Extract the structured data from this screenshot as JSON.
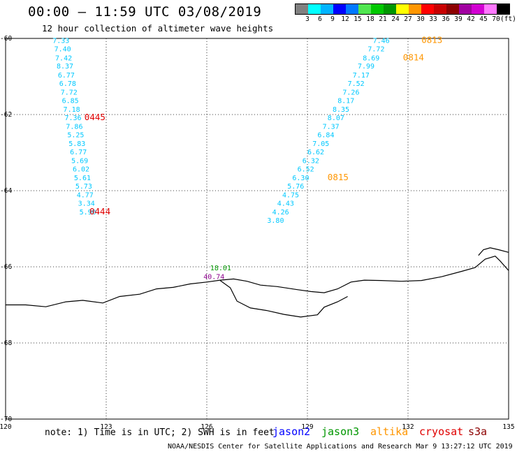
{
  "title": "00:00 – 11:59 UTC 03/08/2019",
  "subtitle": "12 hour collection of altimeter wave heights",
  "scale": {
    "colors": [
      "#808080",
      "#00ffff",
      "#00b4ff",
      "#0000ff",
      "#0078ff",
      "#50e650",
      "#00c800",
      "#009600",
      "#ffff00",
      "#ff9600",
      "#ff0000",
      "#c80000",
      "#8c0000",
      "#a000a0",
      "#d200d2",
      "#ff78ff",
      "#000000"
    ],
    "labels": [
      "3",
      "6",
      "9",
      "12",
      "15",
      "18",
      "21",
      "24",
      "27",
      "30",
      "33",
      "36",
      "39",
      "42",
      "45",
      "70"
    ],
    "unit": "(ft)"
  },
  "map": {
    "lon_range": [
      120,
      135
    ],
    "lat_range": [
      -70,
      -60
    ],
    "y_ticks": [
      "-60",
      "-62",
      "-64",
      "-66",
      "-68",
      "-70"
    ],
    "x_ticks": [
      "120",
      "123",
      "126",
      "129",
      "132",
      "135"
    ],
    "coastline": [
      [
        120.0,
        -67.0
      ],
      [
        120.6,
        -67.0
      ],
      [
        121.2,
        -67.05
      ],
      [
        121.8,
        -66.92
      ],
      [
        122.3,
        -66.88
      ],
      [
        122.9,
        -66.95
      ],
      [
        123.4,
        -66.78
      ],
      [
        124.0,
        -66.72
      ],
      [
        124.5,
        -66.58
      ],
      [
        125.0,
        -66.54
      ],
      [
        125.5,
        -66.45
      ],
      [
        126.0,
        -66.4
      ],
      [
        126.4,
        -66.35
      ],
      [
        126.8,
        -66.32
      ],
      [
        127.2,
        -66.38
      ],
      [
        127.6,
        -66.48
      ],
      [
        128.1,
        -66.52
      ],
      [
        128.7,
        -66.6
      ],
      [
        129.1,
        -66.65
      ],
      [
        129.5,
        -66.68
      ],
      [
        129.9,
        -66.58
      ],
      [
        130.3,
        -66.4
      ],
      [
        130.7,
        -66.35
      ],
      [
        131.2,
        -66.36
      ],
      [
        131.8,
        -66.38
      ],
      [
        132.4,
        -66.36
      ],
      [
        133.0,
        -66.26
      ],
      [
        133.6,
        -66.12
      ],
      [
        134.0,
        -66.02
      ],
      [
        134.3,
        -65.8
      ],
      [
        134.6,
        -65.72
      ],
      [
        134.75,
        -65.85
      ],
      [
        135.0,
        -66.1
      ]
    ],
    "islands": [
      [
        [
          126.4,
          -66.36
        ],
        [
          126.7,
          -66.55
        ],
        [
          126.9,
          -66.9
        ],
        [
          127.3,
          -67.08
        ],
        [
          127.8,
          -67.15
        ],
        [
          128.3,
          -67.25
        ],
        [
          128.8,
          -67.32
        ],
        [
          129.3,
          -67.26
        ],
        [
          129.5,
          -67.06
        ],
        [
          129.9,
          -66.92
        ],
        [
          130.2,
          -66.78
        ]
      ],
      [
        [
          134.1,
          -65.7
        ],
        [
          134.25,
          -65.55
        ],
        [
          134.45,
          -65.5
        ],
        [
          134.7,
          -65.55
        ],
        [
          135.0,
          -65.62
        ]
      ]
    ]
  },
  "tracks": [
    {
      "mission": "cryosat",
      "color": "#00c8ff",
      "values": [
        {
          "v": "7.33",
          "lon": 121.4,
          "lat": -60.05
        },
        {
          "v": "7.40",
          "lon": 121.45,
          "lat": -60.27
        },
        {
          "v": "7.42",
          "lon": 121.48,
          "lat": -60.5
        },
        {
          "v": "8.37",
          "lon": 121.52,
          "lat": -60.72
        },
        {
          "v": "6.77",
          "lon": 121.56,
          "lat": -60.95
        },
        {
          "v": "6.78",
          "lon": 121.6,
          "lat": -61.17
        },
        {
          "v": "7.72",
          "lon": 121.64,
          "lat": -61.4
        },
        {
          "v": "6.85",
          "lon": 121.68,
          "lat": -61.62
        },
        {
          "v": "7.18",
          "lon": 121.72,
          "lat": -61.85
        },
        {
          "v": "7.36",
          "lon": 121.76,
          "lat": -62.07
        },
        {
          "v": "7.86",
          "lon": 121.8,
          "lat": -62.3
        },
        {
          "v": "5.25",
          "lon": 121.84,
          "lat": -62.52
        },
        {
          "v": "5.83",
          "lon": 121.88,
          "lat": -62.75
        },
        {
          "v": "6.77",
          "lon": 121.92,
          "lat": -62.97
        },
        {
          "v": "5.69",
          "lon": 121.96,
          "lat": -63.2
        },
        {
          "v": "6.02",
          "lon": 122.0,
          "lat": -63.42
        },
        {
          "v": "5.61",
          "lon": 122.04,
          "lat": -63.65
        },
        {
          "v": "5.73",
          "lon": 122.08,
          "lat": -63.87
        },
        {
          "v": "4.77",
          "lon": 122.12,
          "lat": -64.1
        },
        {
          "v": "3.34",
          "lon": 122.16,
          "lat": -64.32
        },
        {
          "v": "5.90",
          "lon": 122.2,
          "lat": -64.55
        }
      ],
      "passes": [
        {
          "label": "0445",
          "lon": 122.35,
          "lat": -62.07,
          "color": "#e00000"
        },
        {
          "label": "0444",
          "lon": 122.5,
          "lat": -64.55,
          "color": "#e00000"
        }
      ]
    },
    {
      "mission": "altika",
      "color": "#00c8ff",
      "values": [
        {
          "v": "7.46",
          "lon": 130.95,
          "lat": -60.05
        },
        {
          "v": "7.72",
          "lon": 130.8,
          "lat": -60.27
        },
        {
          "v": "8.69",
          "lon": 130.65,
          "lat": -60.5
        },
        {
          "v": "7.99",
          "lon": 130.5,
          "lat": -60.72
        },
        {
          "v": "7.17",
          "lon": 130.35,
          "lat": -60.95
        },
        {
          "v": "7.52",
          "lon": 130.2,
          "lat": -61.17
        },
        {
          "v": "7.26",
          "lon": 130.05,
          "lat": -61.4
        },
        {
          "v": "8.17",
          "lon": 129.9,
          "lat": -61.62
        },
        {
          "v": "8.35",
          "lon": 129.75,
          "lat": -61.85
        },
        {
          "v": "8.07",
          "lon": 129.6,
          "lat": -62.07
        },
        {
          "v": "7.37",
          "lon": 129.45,
          "lat": -62.3
        },
        {
          "v": "6.84",
          "lon": 129.3,
          "lat": -62.52
        },
        {
          "v": "7.05",
          "lon": 129.15,
          "lat": -62.75
        },
        {
          "v": "6.62",
          "lon": 129.0,
          "lat": -62.97
        },
        {
          "v": "6.32",
          "lon": 128.85,
          "lat": -63.2
        },
        {
          "v": "6.52",
          "lon": 128.7,
          "lat": -63.42
        },
        {
          "v": "6.30",
          "lon": 128.55,
          "lat": -63.65
        },
        {
          "v": "5.76",
          "lon": 128.4,
          "lat": -63.87
        },
        {
          "v": "4.75",
          "lon": 128.25,
          "lat": -64.1
        },
        {
          "v": "4.43",
          "lon": 128.1,
          "lat": -64.32
        },
        {
          "v": "4.26",
          "lon": 127.95,
          "lat": -64.55
        },
        {
          "v": "3.80",
          "lon": 127.8,
          "lat": -64.77
        }
      ],
      "passes": [
        {
          "label": "0813",
          "lon": 132.4,
          "lat": -60.05,
          "color": "#ff9600"
        },
        {
          "label": "0814",
          "lon": 131.85,
          "lat": -60.5,
          "color": "#ff9600"
        },
        {
          "label": "0815",
          "lon": 129.6,
          "lat": -63.65,
          "color": "#ff9600"
        }
      ]
    },
    {
      "mission": "jason3",
      "color": "#009600",
      "values": [
        {
          "v": "18.01",
          "lon": 126.1,
          "lat": -66.02
        }
      ],
      "passes": []
    },
    {
      "mission": "s3a",
      "color": "#8c008c",
      "values": [
        {
          "v": "40.74",
          "lon": 125.9,
          "lat": -66.25
        }
      ],
      "passes": []
    }
  ],
  "note": "note: 1) Time is in UTC; 2) SWH is in feet",
  "legend": [
    {
      "label": "jason2",
      "color": "#0000ff"
    },
    {
      "label": "jason3",
      "color": "#009600"
    },
    {
      "label": "altika",
      "color": "#ff9600"
    },
    {
      "label": "cryosat",
      "color": "#e00000"
    },
    {
      "label": "s3a",
      "color": "#8c0000"
    }
  ],
  "credit": "NOAA/NESDIS Center for Satellite Applications and Research   Mar  9 13:27:12 UTC 2019"
}
